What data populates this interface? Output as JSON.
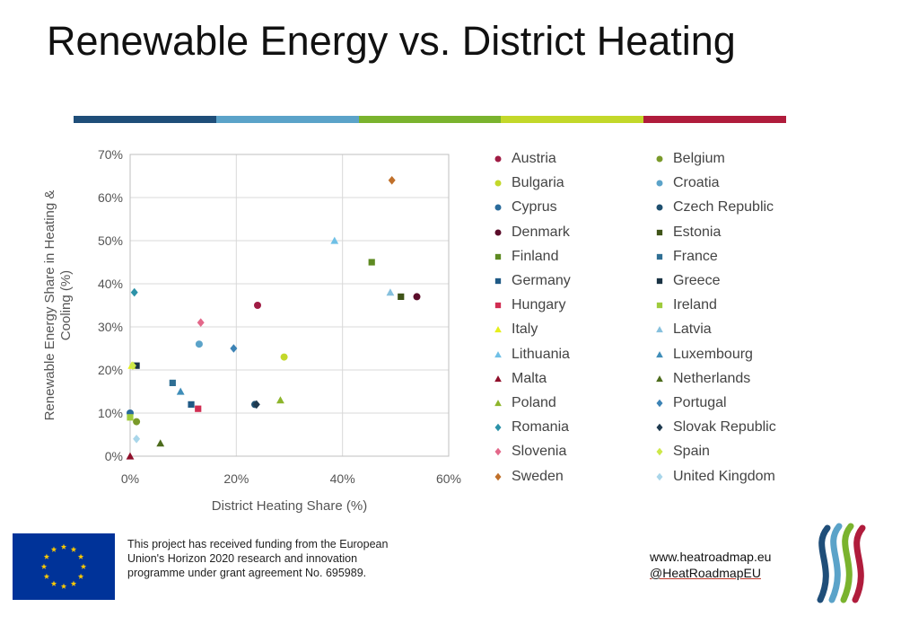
{
  "title": "Renewable Energy vs. District Heating",
  "color_bar": [
    "#1f4e79",
    "#5ba3c9",
    "#7ab32e",
    "#c3d82a",
    "#b01c3c"
  ],
  "chart_data": {
    "type": "scatter",
    "xlabel": "District Heating Share (%)",
    "ylabel": "Renewable Energy Share in Heating & Cooling (%)",
    "xlim": [
      0,
      60
    ],
    "ylim": [
      0,
      70
    ],
    "x_ticks": [
      "0%",
      "20%",
      "40%",
      "60%"
    ],
    "y_ticks": [
      "0%",
      "10%",
      "20%",
      "30%",
      "40%",
      "50%",
      "60%",
      "70%"
    ],
    "grid": true,
    "legend_position": "right",
    "series": [
      {
        "name": "Austria",
        "marker": "circle",
        "color": "#a01c44",
        "x": 24,
        "y": 35
      },
      {
        "name": "Belgium",
        "marker": "circle",
        "color": "#7a9a2a",
        "x": 1.2,
        "y": 8
      },
      {
        "name": "Bulgaria",
        "marker": "circle",
        "color": "#c3d82a",
        "x": 29,
        "y": 23
      },
      {
        "name": "Croatia",
        "marker": "circle",
        "color": "#5ba3c9",
        "x": 13,
        "y": 26
      },
      {
        "name": "Cyprus",
        "marker": "circle",
        "color": "#2a6b9b",
        "x": 0,
        "y": 10
      },
      {
        "name": "Czech Republic",
        "marker": "circle",
        "color": "#1e4f6f",
        "x": 23.5,
        "y": 12
      },
      {
        "name": "Denmark",
        "marker": "circle",
        "color": "#5b0d2a",
        "x": 54,
        "y": 37
      },
      {
        "name": "Estonia",
        "marker": "square",
        "color": "#3f5418",
        "x": 51,
        "y": 37
      },
      {
        "name": "Finland",
        "marker": "square",
        "color": "#5e8a22",
        "x": 45.5,
        "y": 45
      },
      {
        "name": "France",
        "marker": "square",
        "color": "#2f6f94",
        "x": 8,
        "y": 17
      },
      {
        "name": "Germany",
        "marker": "square",
        "color": "#1f5a86",
        "x": 11.5,
        "y": 12
      },
      {
        "name": "Greece",
        "marker": "square",
        "color": "#1a3344",
        "x": 1.2,
        "y": 21
      },
      {
        "name": "Hungary",
        "marker": "square",
        "color": "#d12d52",
        "x": 12.8,
        "y": 11
      },
      {
        "name": "Ireland",
        "marker": "square",
        "color": "#9fcb3c",
        "x": 0,
        "y": 9
      },
      {
        "name": "Italy",
        "marker": "triangle",
        "color": "#e6ef1c",
        "x": 0.3,
        "y": 21
      },
      {
        "name": "Latvia",
        "marker": "triangle",
        "color": "#86c0dd",
        "x": 49,
        "y": 38
      },
      {
        "name": "Lithuania",
        "marker": "triangle",
        "color": "#6fc0e6",
        "x": 38.5,
        "y": 50
      },
      {
        "name": "Luxembourg",
        "marker": "triangle",
        "color": "#3f8db8",
        "x": 9.5,
        "y": 15
      },
      {
        "name": "Malta",
        "marker": "triangle",
        "color": "#8f0f2a",
        "x": 0,
        "y": 0
      },
      {
        "name": "Netherlands",
        "marker": "triangle",
        "color": "#4c6b1c",
        "x": 5.7,
        "y": 3
      },
      {
        "name": "Poland",
        "marker": "triangle",
        "color": "#8db52b",
        "x": 28.3,
        "y": 13
      },
      {
        "name": "Portugal",
        "marker": "diamond",
        "color": "#3c83b5",
        "x": 19.5,
        "y": 25
      },
      {
        "name": "Romania",
        "marker": "diamond",
        "color": "#2c92a8",
        "x": 0.8,
        "y": 38
      },
      {
        "name": "Slovak Republic",
        "marker": "diamond",
        "color": "#1f3a4f",
        "x": 23.8,
        "y": 12
      },
      {
        "name": "Slovenia",
        "marker": "diamond",
        "color": "#e3688a",
        "x": 13.3,
        "y": 31
      },
      {
        "name": "Spain",
        "marker": "diamond",
        "color": "#cde84a",
        "x": 0.5,
        "y": 21
      },
      {
        "name": "Sweden",
        "marker": "diamond",
        "color": "#c0702a",
        "x": 49.3,
        "y": 64
      },
      {
        "name": "United Kingdom",
        "marker": "diamond",
        "color": "#a9d6ea",
        "x": 1.2,
        "y": 4
      }
    ]
  },
  "footer": {
    "funding_text": "This project has received funding from the European Union's Horizon 2020 research and innovation programme under grant agreement No. 695989.",
    "website": "www.heatroadmap.eu",
    "handle": "@HeatRoadmapEU"
  }
}
